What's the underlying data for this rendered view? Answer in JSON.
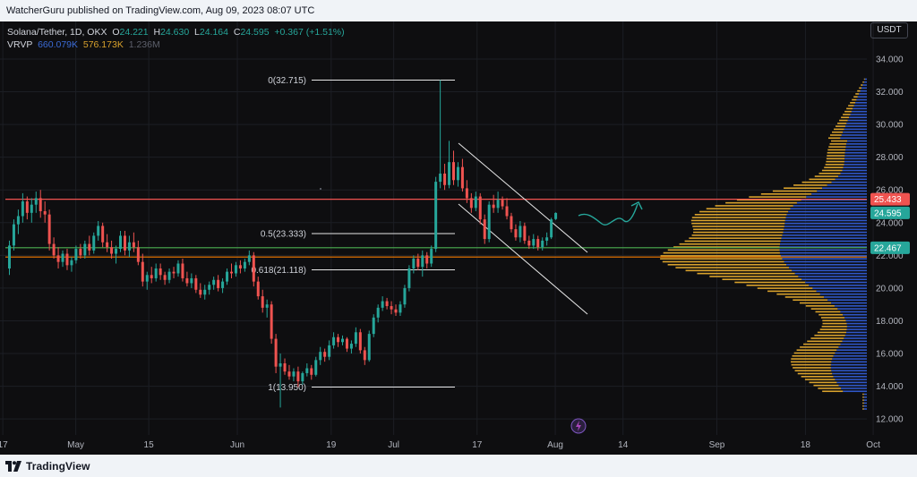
{
  "header": {
    "publisher_line": "WatcherGuru published on TradingView.com, Aug 09, 2023 08:07 UTC"
  },
  "legend": {
    "symbol": "Solana/Tether, 1D, OKX",
    "o_label": "O",
    "o_value": "24.221",
    "h_label": "H",
    "h_value": "24.630",
    "l_label": "L",
    "l_value": "24.164",
    "c_label": "C",
    "c_value": "24.595",
    "change": "+0.367 (+1.51%)",
    "vrvp_label": "VRVP",
    "vrvp_up": "660.079K",
    "vrvp_down": "576.173K",
    "vrvp_total": "1.236M"
  },
  "currency": "USDT",
  "footer": {
    "brand": "TradingView"
  },
  "colors": {
    "up": "#26a69a",
    "down": "#ef5350",
    "grid": "#1c1e24",
    "vol_up": "#2f57c8",
    "vol_down": "#d9a22c",
    "red_line": "#ef5350",
    "green_line": "#26a69a",
    "orange_line": "#f57c00"
  },
  "chart_data": {
    "type": "candlestick",
    "symbol": "Solana/Tether",
    "interval": "1D",
    "exchange": "OKX",
    "y_axis": {
      "min": 12,
      "max": 34,
      "ticks": [
        "34.000",
        "32.000",
        "30.000",
        "28.000",
        "26.000",
        "24.000",
        "22.000",
        "20.000",
        "18.000",
        "16.000",
        "14.000",
        "12.000"
      ]
    },
    "x_axis": {
      "ticks": [
        {
          "label": "17",
          "day": -23
        },
        {
          "label": "May",
          "day": -9
        },
        {
          "label": "15",
          "day": 5
        },
        {
          "label": "Jun",
          "day": 22
        },
        {
          "label": "19",
          "day": 40
        },
        {
          "label": "Jul",
          "day": 52
        },
        {
          "label": "17",
          "day": 68
        },
        {
          "label": "Aug",
          "day": 83
        },
        {
          "label": "14",
          "day": 96
        },
        {
          "label": "Sep",
          "day": 114
        },
        {
          "label": "18",
          "day": 131
        },
        {
          "label": "Oct",
          "day": 144
        }
      ]
    },
    "price_labels": [
      {
        "value": 25.433,
        "text": "25.433",
        "color": "#ef5350"
      },
      {
        "value": 24.595,
        "text": "24.595",
        "color": "#26a69a"
      },
      {
        "value": 22.467,
        "text": "22.467",
        "color": "#26a69a"
      }
    ],
    "horizontal_lines": [
      {
        "value": 25.433,
        "color": "#ef5350"
      },
      {
        "value": 22.467,
        "color": "#4caf50"
      },
      {
        "value": 21.9,
        "color": "#f57c00"
      }
    ],
    "fibonacci": {
      "levels": [
        {
          "text": "0(32.715)",
          "value": 32.715
        },
        {
          "text": "0.5(23.333)",
          "value": 23.333
        },
        {
          "text": "0.618(21.118)",
          "value": 21.118
        },
        {
          "text": "1(13.950)",
          "value": 13.95
        }
      ]
    },
    "candles": [
      {
        "o": 21.2,
        "h": 22.9,
        "l": 20.8,
        "c": 22.6
      },
      {
        "o": 22.6,
        "h": 24.2,
        "l": 22.3,
        "c": 23.9
      },
      {
        "o": 23.9,
        "h": 24.8,
        "l": 23.3,
        "c": 24.4
      },
      {
        "o": 24.4,
        "h": 25.8,
        "l": 24.0,
        "c": 25.3
      },
      {
        "o": 25.3,
        "h": 25.6,
        "l": 24.2,
        "c": 24.6
      },
      {
        "o": 24.6,
        "h": 25.5,
        "l": 24.0,
        "c": 25.1
      },
      {
        "o": 25.1,
        "h": 25.9,
        "l": 24.6,
        "c": 25.5
      },
      {
        "o": 25.5,
        "h": 26.0,
        "l": 24.3,
        "c": 24.7
      },
      {
        "o": 24.7,
        "h": 25.3,
        "l": 24.0,
        "c": 24.5
      },
      {
        "o": 24.5,
        "h": 24.8,
        "l": 22.3,
        "c": 22.7
      },
      {
        "o": 22.7,
        "h": 23.1,
        "l": 21.8,
        "c": 22.0
      },
      {
        "o": 22.0,
        "h": 22.5,
        "l": 21.2,
        "c": 21.6
      },
      {
        "o": 21.6,
        "h": 22.3,
        "l": 21.3,
        "c": 22.1
      },
      {
        "o": 22.1,
        "h": 22.4,
        "l": 21.1,
        "c": 21.4
      },
      {
        "o": 21.4,
        "h": 21.9,
        "l": 21.0,
        "c": 21.7
      },
      {
        "o": 21.7,
        "h": 22.6,
        "l": 21.5,
        "c": 22.4
      },
      {
        "o": 22.4,
        "h": 22.7,
        "l": 21.8,
        "c": 22.0
      },
      {
        "o": 22.0,
        "h": 22.9,
        "l": 21.8,
        "c": 22.7
      },
      {
        "o": 22.7,
        "h": 23.2,
        "l": 22.0,
        "c": 22.3
      },
      {
        "o": 22.3,
        "h": 23.4,
        "l": 22.1,
        "c": 23.2
      },
      {
        "o": 23.2,
        "h": 24.1,
        "l": 22.9,
        "c": 23.8
      },
      {
        "o": 23.8,
        "h": 24.0,
        "l": 22.5,
        "c": 22.8
      },
      {
        "o": 22.8,
        "h": 23.3,
        "l": 22.2,
        "c": 22.5
      },
      {
        "o": 22.5,
        "h": 22.9,
        "l": 21.8,
        "c": 22.1
      },
      {
        "o": 22.1,
        "h": 22.6,
        "l": 21.5,
        "c": 22.4
      },
      {
        "o": 22.4,
        "h": 23.5,
        "l": 22.2,
        "c": 23.2
      },
      {
        "o": 23.2,
        "h": 23.5,
        "l": 22.0,
        "c": 22.3
      },
      {
        "o": 22.3,
        "h": 23.2,
        "l": 21.9,
        "c": 22.8
      },
      {
        "o": 22.8,
        "h": 23.4,
        "l": 22.2,
        "c": 22.5
      },
      {
        "o": 22.5,
        "h": 22.9,
        "l": 21.4,
        "c": 21.6
      },
      {
        "o": 21.6,
        "h": 22.1,
        "l": 20.1,
        "c": 20.4
      },
      {
        "o": 20.4,
        "h": 21.0,
        "l": 19.9,
        "c": 20.8
      },
      {
        "o": 20.8,
        "h": 21.3,
        "l": 20.3,
        "c": 20.6
      },
      {
        "o": 20.6,
        "h": 21.5,
        "l": 20.4,
        "c": 21.2
      },
      {
        "o": 21.2,
        "h": 21.5,
        "l": 20.5,
        "c": 20.8
      },
      {
        "o": 20.8,
        "h": 21.0,
        "l": 20.2,
        "c": 20.5
      },
      {
        "o": 20.5,
        "h": 21.2,
        "l": 20.3,
        "c": 21.0
      },
      {
        "o": 21.0,
        "h": 21.3,
        "l": 20.6,
        "c": 20.9
      },
      {
        "o": 20.9,
        "h": 21.7,
        "l": 20.7,
        "c": 21.5
      },
      {
        "o": 21.5,
        "h": 21.8,
        "l": 20.4,
        "c": 20.6
      },
      {
        "o": 20.6,
        "h": 21.0,
        "l": 20.1,
        "c": 20.3
      },
      {
        "o": 20.3,
        "h": 20.9,
        "l": 20.0,
        "c": 20.6
      },
      {
        "o": 20.6,
        "h": 20.8,
        "l": 19.7,
        "c": 19.9
      },
      {
        "o": 19.9,
        "h": 20.3,
        "l": 19.4,
        "c": 19.6
      },
      {
        "o": 19.6,
        "h": 20.2,
        "l": 19.3,
        "c": 19.9
      },
      {
        "o": 19.9,
        "h": 20.4,
        "l": 19.6,
        "c": 20.2
      },
      {
        "o": 20.2,
        "h": 20.7,
        "l": 19.9,
        "c": 20.5
      },
      {
        "o": 20.5,
        "h": 20.8,
        "l": 19.8,
        "c": 20.0
      },
      {
        "o": 20.0,
        "h": 20.6,
        "l": 19.7,
        "c": 20.4
      },
      {
        "o": 20.4,
        "h": 21.2,
        "l": 20.2,
        "c": 21.0
      },
      {
        "o": 21.0,
        "h": 21.5,
        "l": 20.6,
        "c": 20.9
      },
      {
        "o": 20.9,
        "h": 21.6,
        "l": 20.7,
        "c": 21.4
      },
      {
        "o": 21.4,
        "h": 21.7,
        "l": 20.9,
        "c": 21.2
      },
      {
        "o": 21.2,
        "h": 21.8,
        "l": 21.0,
        "c": 21.6
      },
      {
        "o": 21.6,
        "h": 22.3,
        "l": 21.4,
        "c": 22.0
      },
      {
        "o": 22.0,
        "h": 22.2,
        "l": 20.1,
        "c": 20.4
      },
      {
        "o": 20.4,
        "h": 20.7,
        "l": 19.3,
        "c": 19.5
      },
      {
        "o": 19.5,
        "h": 19.9,
        "l": 18.5,
        "c": 18.8
      },
      {
        "o": 18.8,
        "h": 19.3,
        "l": 18.2,
        "c": 19.0
      },
      {
        "o": 19.0,
        "h": 19.2,
        "l": 16.6,
        "c": 16.9
      },
      {
        "o": 16.9,
        "h": 17.2,
        "l": 14.8,
        "c": 15.2
      },
      {
        "o": 15.2,
        "h": 16.0,
        "l": 12.7,
        "c": 15.4
      },
      {
        "o": 15.4,
        "h": 15.7,
        "l": 14.7,
        "c": 14.9
      },
      {
        "o": 14.9,
        "h": 15.3,
        "l": 14.4,
        "c": 14.6
      },
      {
        "o": 14.6,
        "h": 15.1,
        "l": 14.3,
        "c": 14.9
      },
      {
        "o": 14.9,
        "h": 15.2,
        "l": 13.95,
        "c": 14.3
      },
      {
        "o": 14.3,
        "h": 14.9,
        "l": 14.1,
        "c": 14.8
      },
      {
        "o": 14.8,
        "h": 15.4,
        "l": 14.6,
        "c": 15.1
      },
      {
        "o": 15.1,
        "h": 15.3,
        "l": 14.4,
        "c": 14.7
      },
      {
        "o": 14.7,
        "h": 15.8,
        "l": 14.6,
        "c": 15.6
      },
      {
        "o": 15.6,
        "h": 16.4,
        "l": 15.3,
        "c": 16.1
      },
      {
        "o": 16.1,
        "h": 16.3,
        "l": 15.5,
        "c": 15.8
      },
      {
        "o": 15.8,
        "h": 16.8,
        "l": 15.6,
        "c": 16.5
      },
      {
        "o": 16.5,
        "h": 17.3,
        "l": 16.3,
        "c": 17.0
      },
      {
        "o": 17.0,
        "h": 17.2,
        "l": 16.4,
        "c": 16.7
      },
      {
        "o": 16.7,
        "h": 17.1,
        "l": 16.5,
        "c": 16.9
      },
      {
        "o": 16.9,
        "h": 17.0,
        "l": 16.1,
        "c": 16.3
      },
      {
        "o": 16.3,
        "h": 16.8,
        "l": 16.0,
        "c": 16.6
      },
      {
        "o": 16.6,
        "h": 17.6,
        "l": 16.4,
        "c": 17.3
      },
      {
        "o": 17.3,
        "h": 17.5,
        "l": 16.0,
        "c": 16.2
      },
      {
        "o": 16.2,
        "h": 16.4,
        "l": 15.3,
        "c": 15.6
      },
      {
        "o": 15.6,
        "h": 17.4,
        "l": 15.5,
        "c": 17.2
      },
      {
        "o": 17.2,
        "h": 18.4,
        "l": 17.0,
        "c": 18.2
      },
      {
        "o": 18.2,
        "h": 19.0,
        "l": 17.9,
        "c": 18.8
      },
      {
        "o": 18.8,
        "h": 19.5,
        "l": 18.6,
        "c": 19.2
      },
      {
        "o": 19.2,
        "h": 19.4,
        "l": 18.7,
        "c": 18.9
      },
      {
        "o": 18.9,
        "h": 19.2,
        "l": 18.4,
        "c": 18.7
      },
      {
        "o": 18.7,
        "h": 19.0,
        "l": 18.3,
        "c": 18.5
      },
      {
        "o": 18.5,
        "h": 19.2,
        "l": 18.3,
        "c": 19.0
      },
      {
        "o": 19.0,
        "h": 20.2,
        "l": 18.8,
        "c": 20.0
      },
      {
        "o": 20.0,
        "h": 21.4,
        "l": 19.8,
        "c": 21.2
      },
      {
        "o": 21.2,
        "h": 22.0,
        "l": 20.9,
        "c": 21.8
      },
      {
        "o": 21.8,
        "h": 22.1,
        "l": 21.1,
        "c": 21.3
      },
      {
        "o": 21.3,
        "h": 22.3,
        "l": 20.7,
        "c": 22.0
      },
      {
        "o": 22.0,
        "h": 22.2,
        "l": 21.2,
        "c": 21.5
      },
      {
        "o": 21.5,
        "h": 22.6,
        "l": 21.3,
        "c": 22.4
      },
      {
        "o": 22.4,
        "h": 26.8,
        "l": 22.2,
        "c": 26.5
      },
      {
        "o": 26.5,
        "h": 32.715,
        "l": 26.1,
        "c": 27.0
      },
      {
        "o": 27.0,
        "h": 27.6,
        "l": 26.0,
        "c": 26.3
      },
      {
        "o": 26.3,
        "h": 29.0,
        "l": 26.1,
        "c": 27.7
      },
      {
        "o": 27.7,
        "h": 28.4,
        "l": 26.3,
        "c": 26.6
      },
      {
        "o": 26.6,
        "h": 27.7,
        "l": 26.2,
        "c": 27.4
      },
      {
        "o": 27.4,
        "h": 27.9,
        "l": 25.9,
        "c": 26.1
      },
      {
        "o": 26.1,
        "h": 26.6,
        "l": 25.2,
        "c": 25.5
      },
      {
        "o": 25.5,
        "h": 25.8,
        "l": 24.6,
        "c": 24.9
      },
      {
        "o": 24.9,
        "h": 25.9,
        "l": 24.7,
        "c": 25.6
      },
      {
        "o": 25.6,
        "h": 25.8,
        "l": 23.9,
        "c": 24.2
      },
      {
        "o": 24.2,
        "h": 24.5,
        "l": 22.7,
        "c": 23.0
      },
      {
        "o": 23.0,
        "h": 25.3,
        "l": 22.8,
        "c": 25.1
      },
      {
        "o": 25.1,
        "h": 25.7,
        "l": 24.6,
        "c": 24.9
      },
      {
        "o": 24.9,
        "h": 25.9,
        "l": 24.6,
        "c": 25.4
      },
      {
        "o": 25.4,
        "h": 25.6,
        "l": 24.8,
        "c": 25.0
      },
      {
        "o": 25.0,
        "h": 25.5,
        "l": 24.2,
        "c": 24.4
      },
      {
        "o": 24.4,
        "h": 24.6,
        "l": 23.4,
        "c": 23.6
      },
      {
        "o": 23.6,
        "h": 23.9,
        "l": 22.9,
        "c": 23.1
      },
      {
        "o": 23.1,
        "h": 24.1,
        "l": 22.8,
        "c": 23.8
      },
      {
        "o": 23.8,
        "h": 24.0,
        "l": 22.7,
        "c": 22.9
      },
      {
        "o": 22.9,
        "h": 23.2,
        "l": 22.4,
        "c": 22.6
      },
      {
        "o": 22.6,
        "h": 23.3,
        "l": 22.4,
        "c": 23.0
      },
      {
        "o": 23.0,
        "h": 23.2,
        "l": 22.3,
        "c": 22.5
      },
      {
        "o": 22.5,
        "h": 23.1,
        "l": 22.3,
        "c": 22.9
      },
      {
        "o": 22.9,
        "h": 23.4,
        "l": 22.6,
        "c": 23.1
      },
      {
        "o": 23.1,
        "h": 24.3,
        "l": 23.0,
        "c": 24.2
      },
      {
        "o": 24.221,
        "h": 24.63,
        "l": 24.164,
        "c": 24.595
      }
    ],
    "volume_profile": {
      "up_volume_total": "660.079K",
      "down_volume_total": "576.173K",
      "total": "1.236M"
    }
  }
}
